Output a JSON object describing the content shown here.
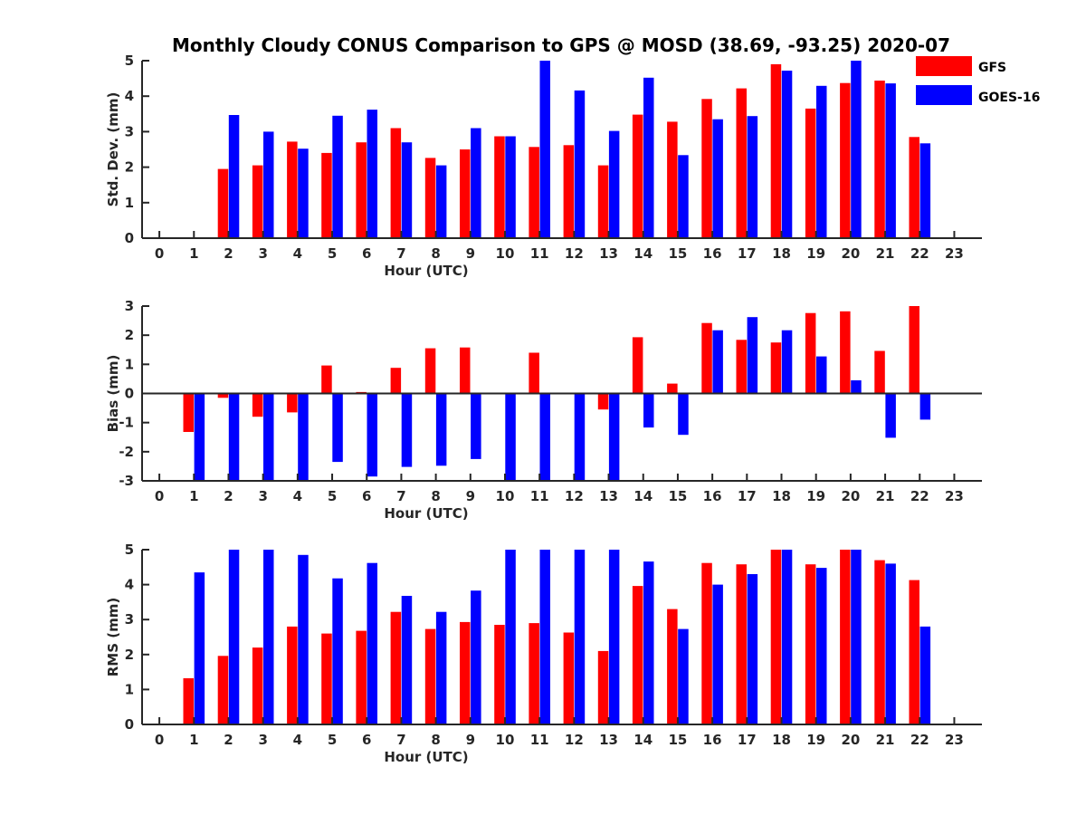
{
  "figure_title": "Monthly Cloudy CONUS Comparison to GPS @ MOSD (38.69, -93.25) 2020-07",
  "legend": [
    {
      "name": "GFS",
      "color": "#ff0000"
    },
    {
      "name": "GOES-16",
      "color": "#0000ff"
    }
  ],
  "chart_data": [
    {
      "type": "bar",
      "ylabel": "Std. Dev. (mm)",
      "xlabel": "Hour (UTC)",
      "x": [
        0,
        1,
        2,
        3,
        4,
        5,
        6,
        7,
        8,
        9,
        10,
        11,
        12,
        13,
        14,
        15,
        16,
        17,
        18,
        19,
        20,
        21,
        22,
        23
      ],
      "xlim": [
        -0.5,
        23.8
      ],
      "ylim": [
        0,
        5
      ],
      "yticks": [
        0,
        1,
        2,
        3,
        4,
        5
      ],
      "series": [
        {
          "name": "GFS",
          "color": "#ff0000",
          "values": [
            null,
            null,
            1.95,
            2.05,
            2.72,
            2.4,
            2.7,
            3.1,
            2.26,
            2.5,
            2.87,
            2.57,
            2.62,
            2.05,
            3.48,
            3.28,
            3.92,
            4.22,
            4.9,
            3.65,
            4.37,
            4.44,
            2.85,
            null
          ]
        },
        {
          "name": "GOES-16",
          "color": "#0000ff",
          "values": [
            null,
            null,
            3.47,
            3.0,
            2.52,
            3.45,
            3.62,
            2.7,
            2.05,
            3.1,
            2.87,
            5.0,
            4.16,
            3.02,
            4.52,
            2.34,
            3.35,
            3.44,
            4.72,
            4.29,
            5.0,
            4.36,
            2.67,
            null
          ]
        }
      ]
    },
    {
      "type": "bar",
      "ylabel": "Bias (mm)",
      "xlabel": "Hour (UTC)",
      "x": [
        0,
        1,
        2,
        3,
        4,
        5,
        6,
        7,
        8,
        9,
        10,
        11,
        12,
        13,
        14,
        15,
        16,
        17,
        18,
        19,
        20,
        21,
        22,
        23
      ],
      "xlim": [
        -0.5,
        23.8
      ],
      "ylim": [
        -3,
        3
      ],
      "yticks": [
        -3,
        -2,
        -1,
        0,
        1,
        2,
        3
      ],
      "series": [
        {
          "name": "GFS",
          "color": "#ff0000",
          "values": [
            null,
            -1.32,
            -0.15,
            -0.8,
            -0.65,
            0.96,
            0.05,
            0.88,
            1.55,
            1.58,
            null,
            1.4,
            -0.03,
            -0.55,
            1.93,
            0.34,
            2.42,
            1.84,
            1.75,
            2.76,
            2.82,
            1.46,
            3.0,
            null
          ]
        },
        {
          "name": "GOES-16",
          "color": "#0000ff",
          "values": [
            null,
            -3.0,
            -3.0,
            -3.0,
            -3.0,
            -2.35,
            -2.85,
            -2.52,
            -2.48,
            -2.25,
            -3.0,
            -3.0,
            -3.0,
            -3.0,
            -1.17,
            -1.42,
            2.17,
            2.62,
            2.17,
            1.27,
            0.45,
            -1.52,
            -0.9,
            null
          ]
        }
      ]
    },
    {
      "type": "bar",
      "ylabel": "RMS (mm)",
      "xlabel": "Hour (UTC)",
      "x": [
        0,
        1,
        2,
        3,
        4,
        5,
        6,
        7,
        8,
        9,
        10,
        11,
        12,
        13,
        14,
        15,
        16,
        17,
        18,
        19,
        20,
        21,
        22,
        23
      ],
      "xlim": [
        -0.5,
        23.8
      ],
      "ylim": [
        0,
        5
      ],
      "yticks": [
        0,
        1,
        2,
        3,
        4,
        5
      ],
      "series": [
        {
          "name": "GFS",
          "color": "#ff0000",
          "values": [
            null,
            1.32,
            1.96,
            2.2,
            2.8,
            2.6,
            2.68,
            3.22,
            2.73,
            2.93,
            2.85,
            2.9,
            2.63,
            2.1,
            3.96,
            3.3,
            4.62,
            4.58,
            5.0,
            4.58,
            5.0,
            4.7,
            4.13,
            null
          ]
        },
        {
          "name": "GOES-16",
          "color": "#0000ff",
          "values": [
            null,
            4.35,
            5.0,
            5.0,
            4.85,
            4.18,
            4.62,
            3.68,
            3.22,
            3.83,
            5.0,
            5.0,
            5.0,
            5.0,
            4.66,
            2.73,
            4.0,
            4.3,
            5.0,
            4.48,
            5.0,
            4.6,
            2.8,
            null
          ]
        }
      ]
    }
  ]
}
